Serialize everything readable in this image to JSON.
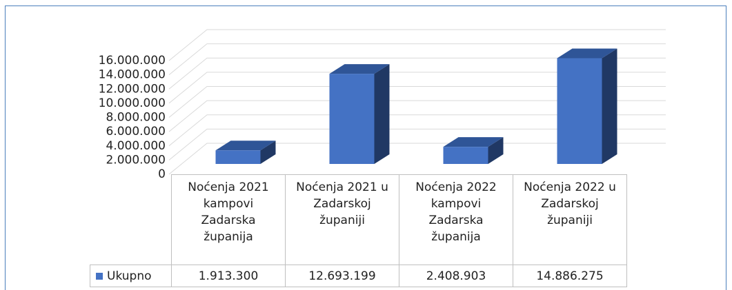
{
  "chart_data": {
    "type": "bar3d",
    "categories": [
      "Noćenja 2021 kampovi Zadarska županija",
      "Noćenja 2021 u Zadarskoj županiji",
      "Noćenja 2022 kampovi Zadarska županija",
      "Noćenja 2022 u Zadarskoj županiji"
    ],
    "series": [
      {
        "name": "Ukupno",
        "color": "#4472c4",
        "values": [
          1913300,
          12693199,
          2408903,
          14886275
        ],
        "value_labels": [
          "1.913.300",
          "12.693.199",
          "2.408.903",
          "14.886.275"
        ]
      }
    ],
    "ylim": [
      0,
      16000000
    ],
    "yticks": [
      0,
      {
        "value": 2000000,
        "label": "2.000.000"
      },
      {
        "value": 4000000,
        "label": "4.000.000"
      },
      {
        "value": 6000000,
        "label": "6.000.000"
      },
      {
        "value": 8000000,
        "label": "8.000.000"
      },
      {
        "value": 10000000,
        "label": "10.000.000"
      },
      {
        "value": 12000000,
        "label": "12.000.000"
      },
      {
        "value": 14000000,
        "label": "14.000.000"
      },
      {
        "value": 16000000,
        "label": "16.000.000"
      }
    ],
    "grid": true,
    "legend": "table"
  }
}
